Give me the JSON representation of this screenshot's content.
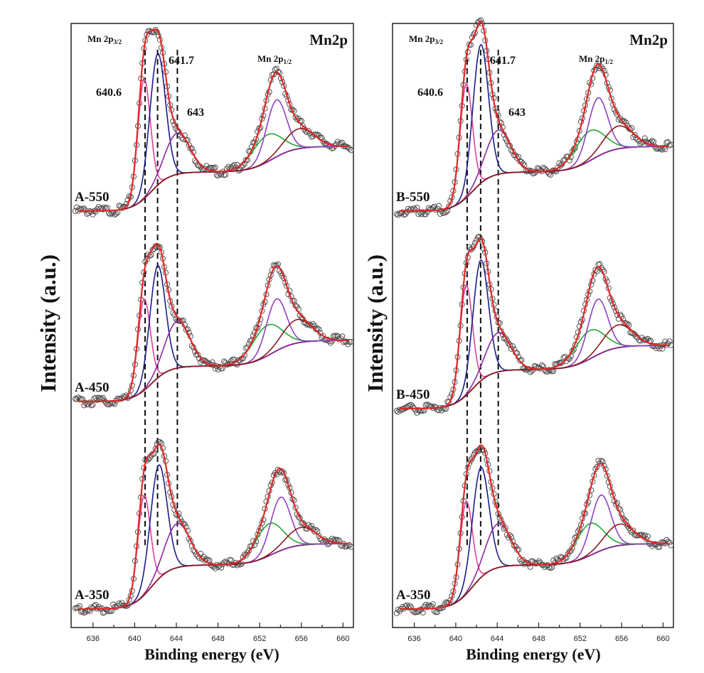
{
  "chart_data": [
    {
      "type": "line",
      "title": "Mn2p",
      "xlabel": "Binding energy (eV)",
      "ylabel": "Intensity (a.u.)",
      "xlim": [
        633.9,
        661.0
      ],
      "ylim": [
        0,
        8.5
      ],
      "xticks": [
        636,
        640,
        644,
        648,
        652,
        656,
        660
      ],
      "grid": false,
      "annotations": {
        "peak_3_2_prefix": "Mn 2p",
        "peak_3_2_sub": "3/2",
        "peak_1_2_prefix": "Mn 2p",
        "peak_1_2_sub": "1/2",
        "e1": "640.6",
        "e2": "641.7",
        "e3": "643"
      },
      "reference_lines_ev": [
        641.0,
        642.2,
        644.1
      ],
      "spectra": [
        {
          "label": "A-550",
          "baseline": 5.86,
          "step1": 0.55,
          "step2": 0.36,
          "components": [
            {
              "center": 640.9,
              "height": 1.68,
              "sigma": 0.6,
              "color": "#e0409a"
            },
            {
              "center": 642.2,
              "height": 1.85,
              "sigma": 0.75,
              "color": "#1c1c8c"
            },
            {
              "center": 644.1,
              "height": 0.58,
              "sigma": 1.2,
              "color": "#8a2a9a"
            },
            {
              "center": 652.7,
              "height": 0.38,
              "sigma": 1.4,
              "color": "#22aa33"
            },
            {
              "center": 653.6,
              "height": 0.8,
              "sigma": 0.95,
              "color": "#9040c0"
            },
            {
              "center": 655.8,
              "height": 0.28,
              "sigma": 1.4,
              "color": "#8b1a1a"
            }
          ]
        },
        {
          "label": "A-450",
          "baseline": 3.18,
          "step1": 0.5,
          "step2": 0.36,
          "components": [
            {
              "center": 640.9,
              "height": 1.28,
              "sigma": 0.6,
              "color": "#e0409a"
            },
            {
              "center": 642.2,
              "height": 1.58,
              "sigma": 0.75,
              "color": "#1c1c8c"
            },
            {
              "center": 644.1,
              "height": 0.66,
              "sigma": 1.2,
              "color": "#8a2a9a"
            },
            {
              "center": 652.7,
              "height": 0.43,
              "sigma": 1.4,
              "color": "#22aa33"
            },
            {
              "center": 653.6,
              "height": 0.73,
              "sigma": 0.95,
              "color": "#9040c0"
            },
            {
              "center": 655.6,
              "height": 0.33,
              "sigma": 1.4,
              "color": "#8b1a1a"
            }
          ]
        },
        {
          "label": "A-350",
          "baseline": 0.26,
          "step1": 0.62,
          "step2": 0.3,
          "components": [
            {
              "center": 640.9,
              "height": 1.4,
              "sigma": 0.6,
              "color": "#e0409a"
            },
            {
              "center": 642.3,
              "height": 1.6,
              "sigma": 0.8,
              "color": "#1c1c8c"
            },
            {
              "center": 644.1,
              "height": 0.62,
              "sigma": 1.2,
              "color": "#8a2a9a"
            },
            {
              "center": 652.9,
              "height": 0.45,
              "sigma": 1.3,
              "color": "#22aa33"
            },
            {
              "center": 654.0,
              "height": 0.75,
              "sigma": 0.95,
              "color": "#9040c0"
            },
            {
              "center": 656.0,
              "height": 0.25,
              "sigma": 1.4,
              "color": "#8b1a1a"
            }
          ]
        }
      ]
    },
    {
      "type": "line",
      "title": "Mn2p",
      "xlabel": "Binding energy (eV)",
      "ylabel": "Intensity (a.u.)",
      "xlim": [
        633.9,
        661.0
      ],
      "ylim": [
        0,
        8.5
      ],
      "xticks": [
        636,
        640,
        644,
        648,
        652,
        656,
        660
      ],
      "grid": false,
      "annotations": {
        "peak_3_2_prefix": "Mn 2p",
        "peak_3_2_sub": "3/2",
        "peak_1_2_prefix": "Mn 2p",
        "peak_1_2_sub": "1/2",
        "e1": "640.6",
        "e2": "641.7",
        "e3": "643"
      },
      "reference_lines_ev": [
        641.1,
        642.4,
        644.1
      ],
      "spectra": [
        {
          "label": "B-550",
          "baseline": 5.86,
          "step1": 0.55,
          "step2": 0.36,
          "components": [
            {
              "center": 641.0,
              "height": 1.6,
              "sigma": 0.6,
              "color": "#e0409a"
            },
            {
              "center": 642.4,
              "height": 1.95,
              "sigma": 0.75,
              "color": "#1c1c8c"
            },
            {
              "center": 644.1,
              "height": 0.62,
              "sigma": 1.2,
              "color": "#8a2a9a"
            },
            {
              "center": 652.9,
              "height": 0.42,
              "sigma": 1.4,
              "color": "#22aa33"
            },
            {
              "center": 653.7,
              "height": 0.82,
              "sigma": 0.95,
              "color": "#9040c0"
            },
            {
              "center": 655.7,
              "height": 0.32,
              "sigma": 1.4,
              "color": "#8b1a1a"
            }
          ]
        },
        {
          "label": "B-450",
          "baseline": 3.08,
          "step1": 0.55,
          "step2": 0.34,
          "components": [
            {
              "center": 641.0,
              "height": 1.55,
              "sigma": 0.6,
              "color": "#e0409a"
            },
            {
              "center": 642.4,
              "height": 1.7,
              "sigma": 0.75,
              "color": "#1c1c8c"
            },
            {
              "center": 644.1,
              "height": 0.55,
              "sigma": 1.2,
              "color": "#8a2a9a"
            },
            {
              "center": 652.9,
              "height": 0.4,
              "sigma": 1.4,
              "color": "#22aa33"
            },
            {
              "center": 653.7,
              "height": 0.78,
              "sigma": 0.95,
              "color": "#9040c0"
            },
            {
              "center": 655.7,
              "height": 0.32,
              "sigma": 1.4,
              "color": "#8b1a1a"
            }
          ]
        },
        {
          "label": "A-350",
          "baseline": 0.26,
          "step1": 0.62,
          "step2": 0.3,
          "components": [
            {
              "center": 641.0,
              "height": 1.3,
              "sigma": 0.6,
              "color": "#e0409a"
            },
            {
              "center": 642.4,
              "height": 1.55,
              "sigma": 0.8,
              "color": "#1c1c8c"
            },
            {
              "center": 644.1,
              "height": 0.62,
              "sigma": 1.2,
              "color": "#8a2a9a"
            },
            {
              "center": 652.9,
              "height": 0.45,
              "sigma": 1.3,
              "color": "#22aa33"
            },
            {
              "center": 654.0,
              "height": 0.78,
              "sigma": 0.95,
              "color": "#9040c0"
            },
            {
              "center": 655.8,
              "height": 0.3,
              "sigma": 1.4,
              "color": "#8b1a1a"
            }
          ]
        }
      ]
    }
  ],
  "colors": {
    "fit": "#e02828",
    "background": "#c0105a",
    "data": "#333333"
  }
}
